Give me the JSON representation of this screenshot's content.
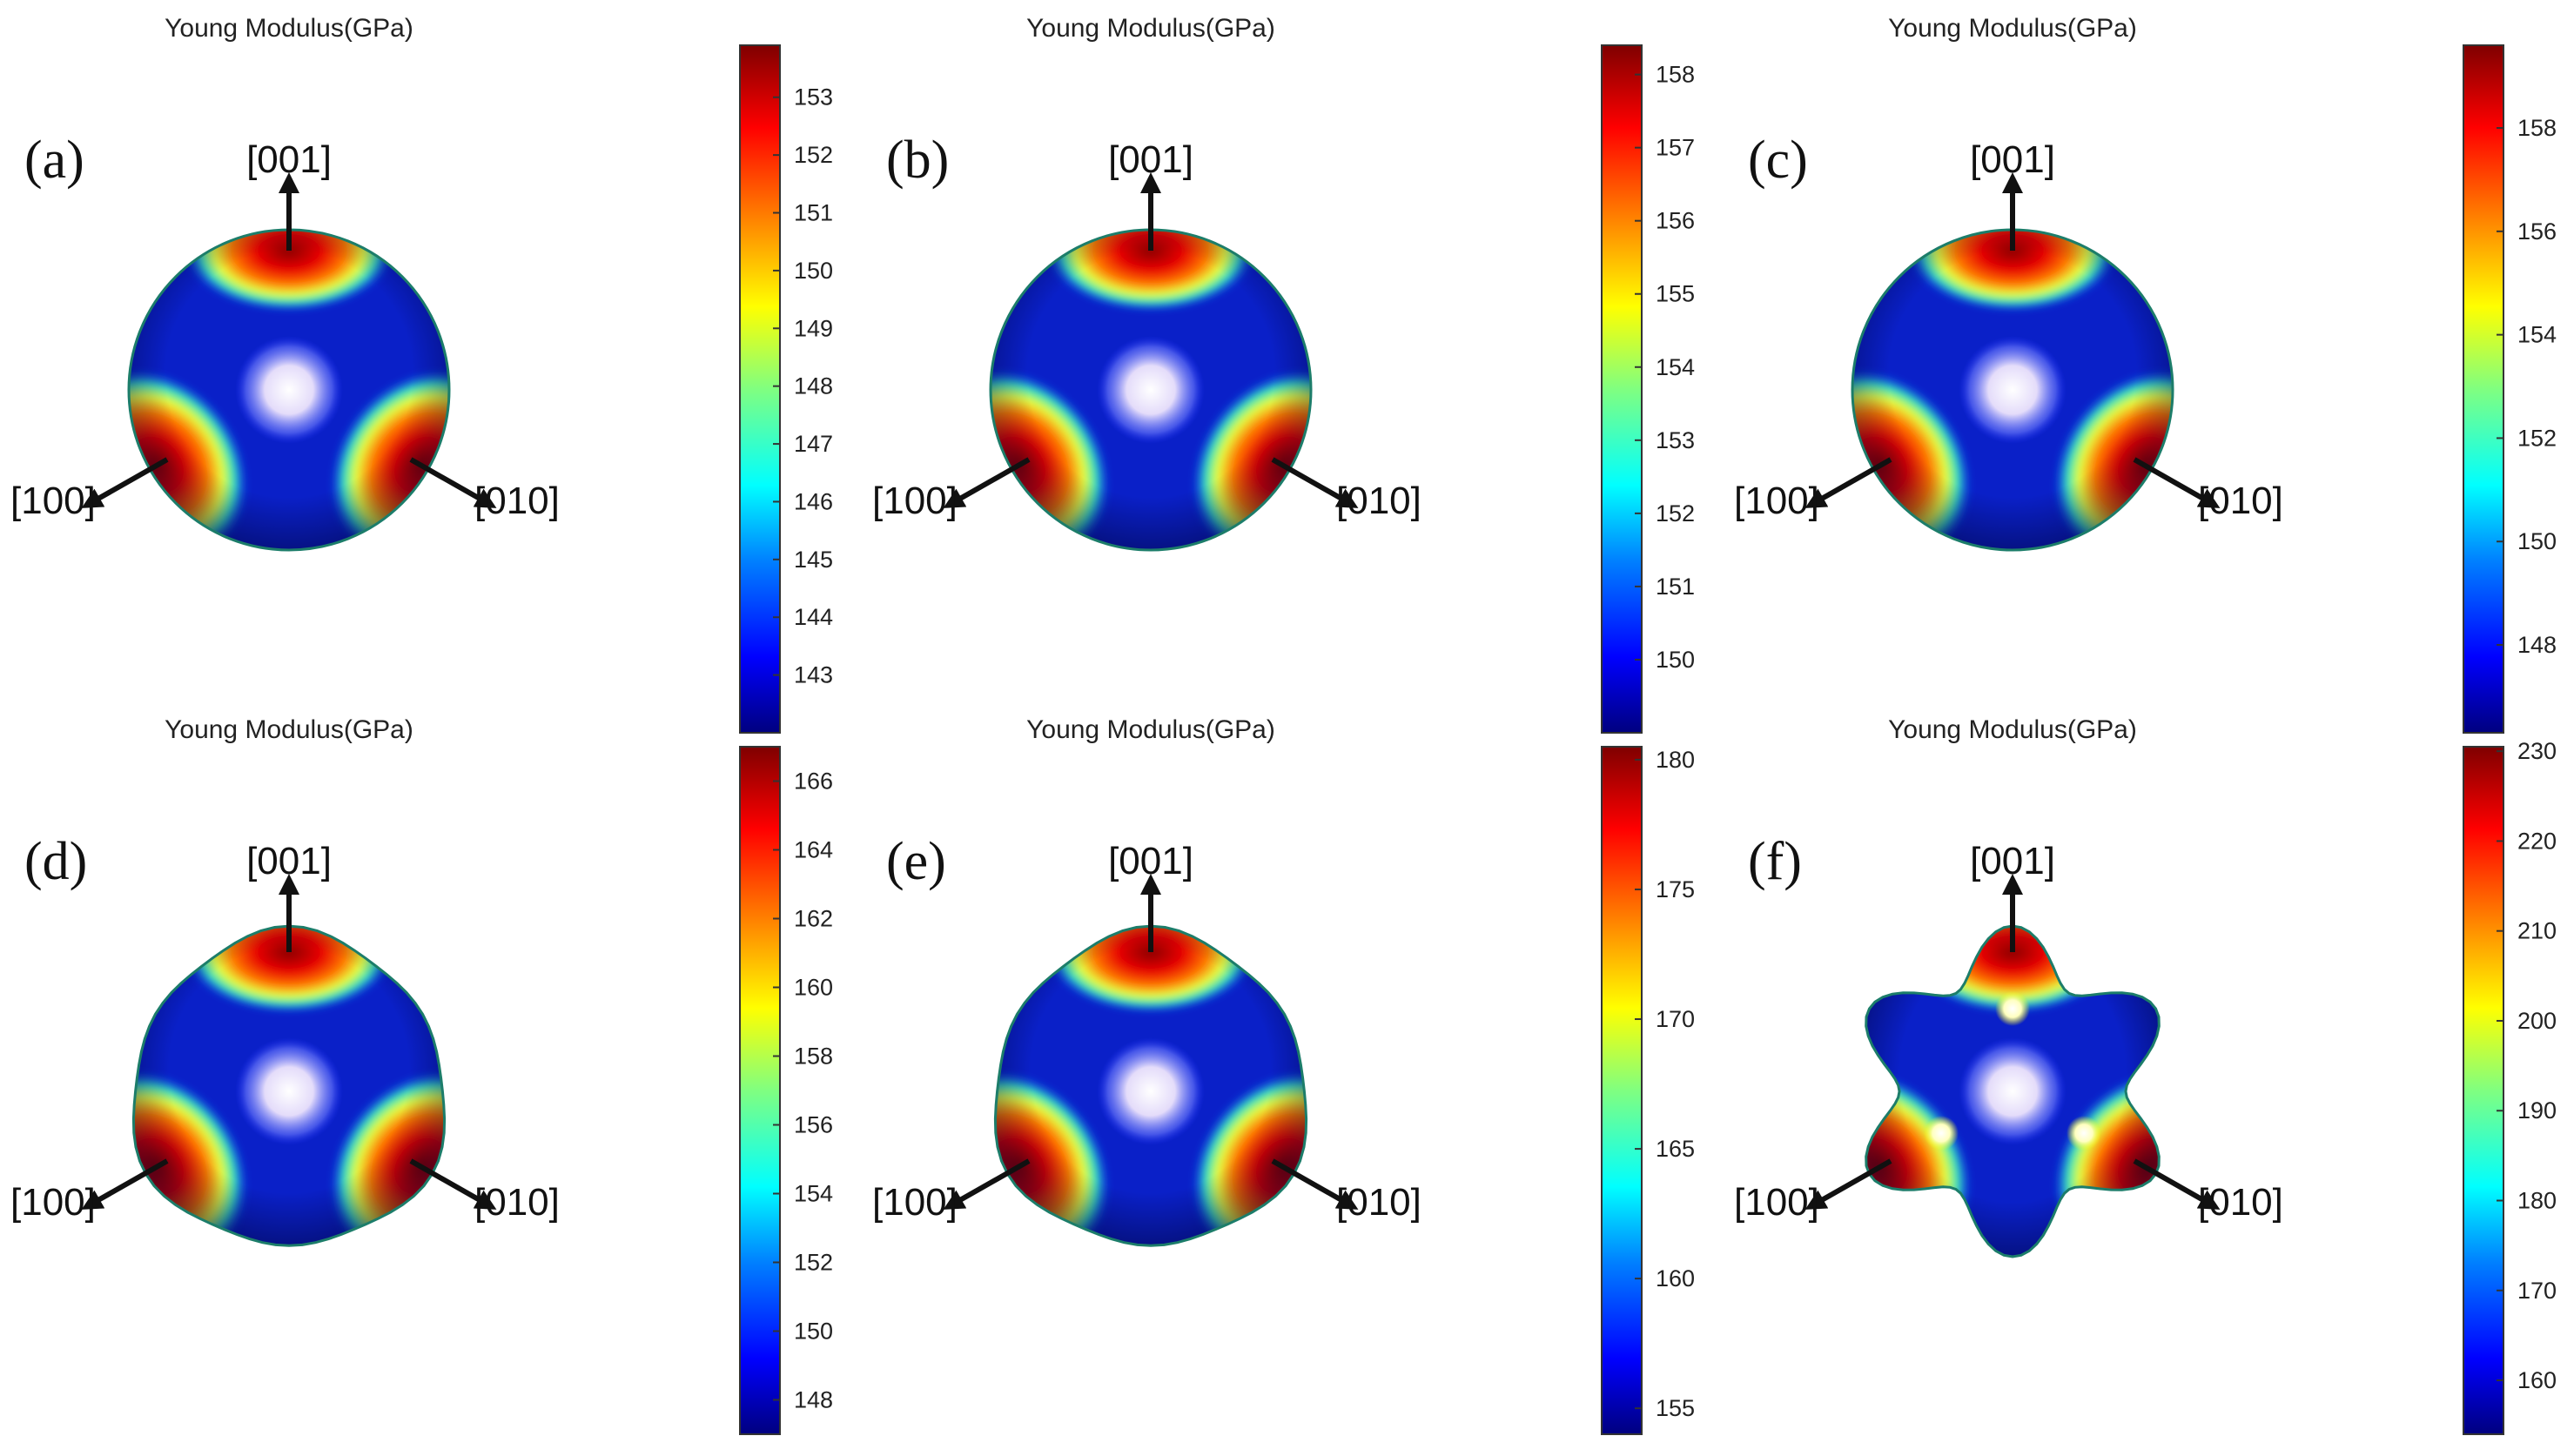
{
  "figure": {
    "panels": [
      {
        "id": "a",
        "label": "(a)",
        "title": "Young Modulus(GPa)",
        "colorbar_ticks": [
          143,
          144,
          145,
          146,
          147,
          148,
          149,
          150,
          151,
          152,
          153
        ],
        "colorbar_range": [
          142.0,
          153.9
        ],
        "axes": {
          "top": "[001]",
          "left": "[100]",
          "right": "[010]"
        },
        "shape": "sphere"
      },
      {
        "id": "b",
        "label": "(b)",
        "title": "Young Modulus(GPa)",
        "colorbar_ticks": [
          150,
          151,
          152,
          153,
          154,
          155,
          156,
          157,
          158
        ],
        "colorbar_range": [
          149.0,
          158.4
        ],
        "axes": {
          "top": "[001]",
          "left": "[100]",
          "right": "[010]"
        },
        "shape": "sphere"
      },
      {
        "id": "c",
        "label": "(c)",
        "title": "Young Modulus(GPa)",
        "colorbar_ticks": [
          148,
          150,
          152,
          154,
          156,
          158
        ],
        "colorbar_range": [
          146.3,
          159.6
        ],
        "axes": {
          "top": "[001]",
          "left": "[100]",
          "right": "[010]"
        },
        "shape": "sphere"
      },
      {
        "id": "d",
        "label": "(d)",
        "title": "Young Modulus(GPa)",
        "colorbar_ticks": [
          148,
          150,
          152,
          154,
          156,
          158,
          160,
          162,
          164,
          166
        ],
        "colorbar_range": [
          147.0,
          167.0
        ],
        "axes": {
          "top": "[001]",
          "left": "[100]",
          "right": "[010]"
        },
        "shape": "rounded"
      },
      {
        "id": "e",
        "label": "(e)",
        "title": "Young Modulus(GPa)",
        "colorbar_ticks": [
          155,
          160,
          165,
          170,
          175,
          180
        ],
        "colorbar_range": [
          154.0,
          180.5
        ],
        "axes": {
          "top": "[001]",
          "left": "[100]",
          "right": "[010]"
        },
        "shape": "rounded"
      },
      {
        "id": "f",
        "label": "(f)",
        "title": "Young Modulus(GPa)",
        "colorbar_ticks": [
          160,
          170,
          180,
          190,
          200,
          210,
          220,
          230
        ],
        "colorbar_range": [
          154.0,
          230.5
        ],
        "axes": {
          "top": "[001]",
          "left": "[100]",
          "right": "[010]"
        },
        "shape": "lobed"
      }
    ]
  },
  "chart_data": [
    {
      "type": "heatmap",
      "title": "Young Modulus(GPa)",
      "panel": "(a)",
      "colorbar_ticks": [
        143,
        144,
        145,
        146,
        147,
        148,
        149,
        150,
        151,
        152,
        153
      ],
      "range": [
        142.0,
        153.9
      ],
      "directions": [
        "[001]",
        "[100]",
        "[010]"
      ]
    },
    {
      "type": "heatmap",
      "title": "Young Modulus(GPa)",
      "panel": "(b)",
      "colorbar_ticks": [
        150,
        151,
        152,
        153,
        154,
        155,
        156,
        157,
        158
      ],
      "range": [
        149.0,
        158.4
      ],
      "directions": [
        "[001]",
        "[100]",
        "[010]"
      ]
    },
    {
      "type": "heatmap",
      "title": "Young Modulus(GPa)",
      "panel": "(c)",
      "colorbar_ticks": [
        148,
        150,
        152,
        154,
        156,
        158
      ],
      "range": [
        146.3,
        159.6
      ],
      "directions": [
        "[001]",
        "[100]",
        "[010]"
      ]
    },
    {
      "type": "heatmap",
      "title": "Young Modulus(GPa)",
      "panel": "(d)",
      "colorbar_ticks": [
        148,
        150,
        152,
        154,
        156,
        158,
        160,
        162,
        164,
        166
      ],
      "range": [
        147.0,
        167.0
      ],
      "directions": [
        "[001]",
        "[100]",
        "[010]"
      ]
    },
    {
      "type": "heatmap",
      "title": "Young Modulus(GPa)",
      "panel": "(e)",
      "colorbar_ticks": [
        155,
        160,
        165,
        170,
        175,
        180
      ],
      "range": [
        154.0,
        180.5
      ],
      "directions": [
        "[001]",
        "[100]",
        "[010]"
      ]
    },
    {
      "type": "heatmap",
      "title": "Young Modulus(GPa)",
      "panel": "(f)",
      "colorbar_ticks": [
        160,
        170,
        180,
        190,
        200,
        210,
        220,
        230
      ],
      "range": [
        154.0,
        230.5
      ],
      "directions": [
        "[001]",
        "[100]",
        "[010]"
      ]
    }
  ],
  "colors": {
    "jet": [
      "#00007f",
      "#0000ff",
      "#0080ff",
      "#00ffff",
      "#80ff80",
      "#ffff00",
      "#ff8000",
      "#ff0000",
      "#7f0000"
    ],
    "center_glow": "#f2eefc"
  }
}
